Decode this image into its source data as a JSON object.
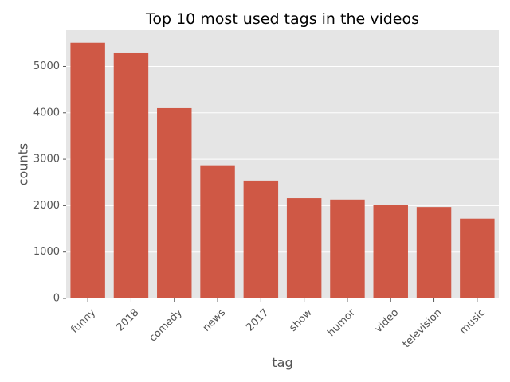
{
  "chart_data": {
    "type": "bar",
    "title": "Top 10 most used tags in the videos",
    "xlabel": "tag",
    "ylabel": "counts",
    "categories": [
      "funny",
      "2018",
      "comedy",
      "news",
      "2017",
      "show",
      "humor",
      "video",
      "television",
      "music"
    ],
    "values": [
      5510,
      5300,
      4100,
      2870,
      2540,
      2160,
      2130,
      2020,
      1970,
      1720
    ],
    "ylim": [
      0,
      5780
    ],
    "yticks": [
      0,
      1000,
      2000,
      3000,
      4000,
      5000
    ],
    "grid": true,
    "legend": "none",
    "colors": {
      "bar": "#cf5845",
      "plot_background": "#e5e5e5",
      "grid": "#ffffff"
    }
  }
}
